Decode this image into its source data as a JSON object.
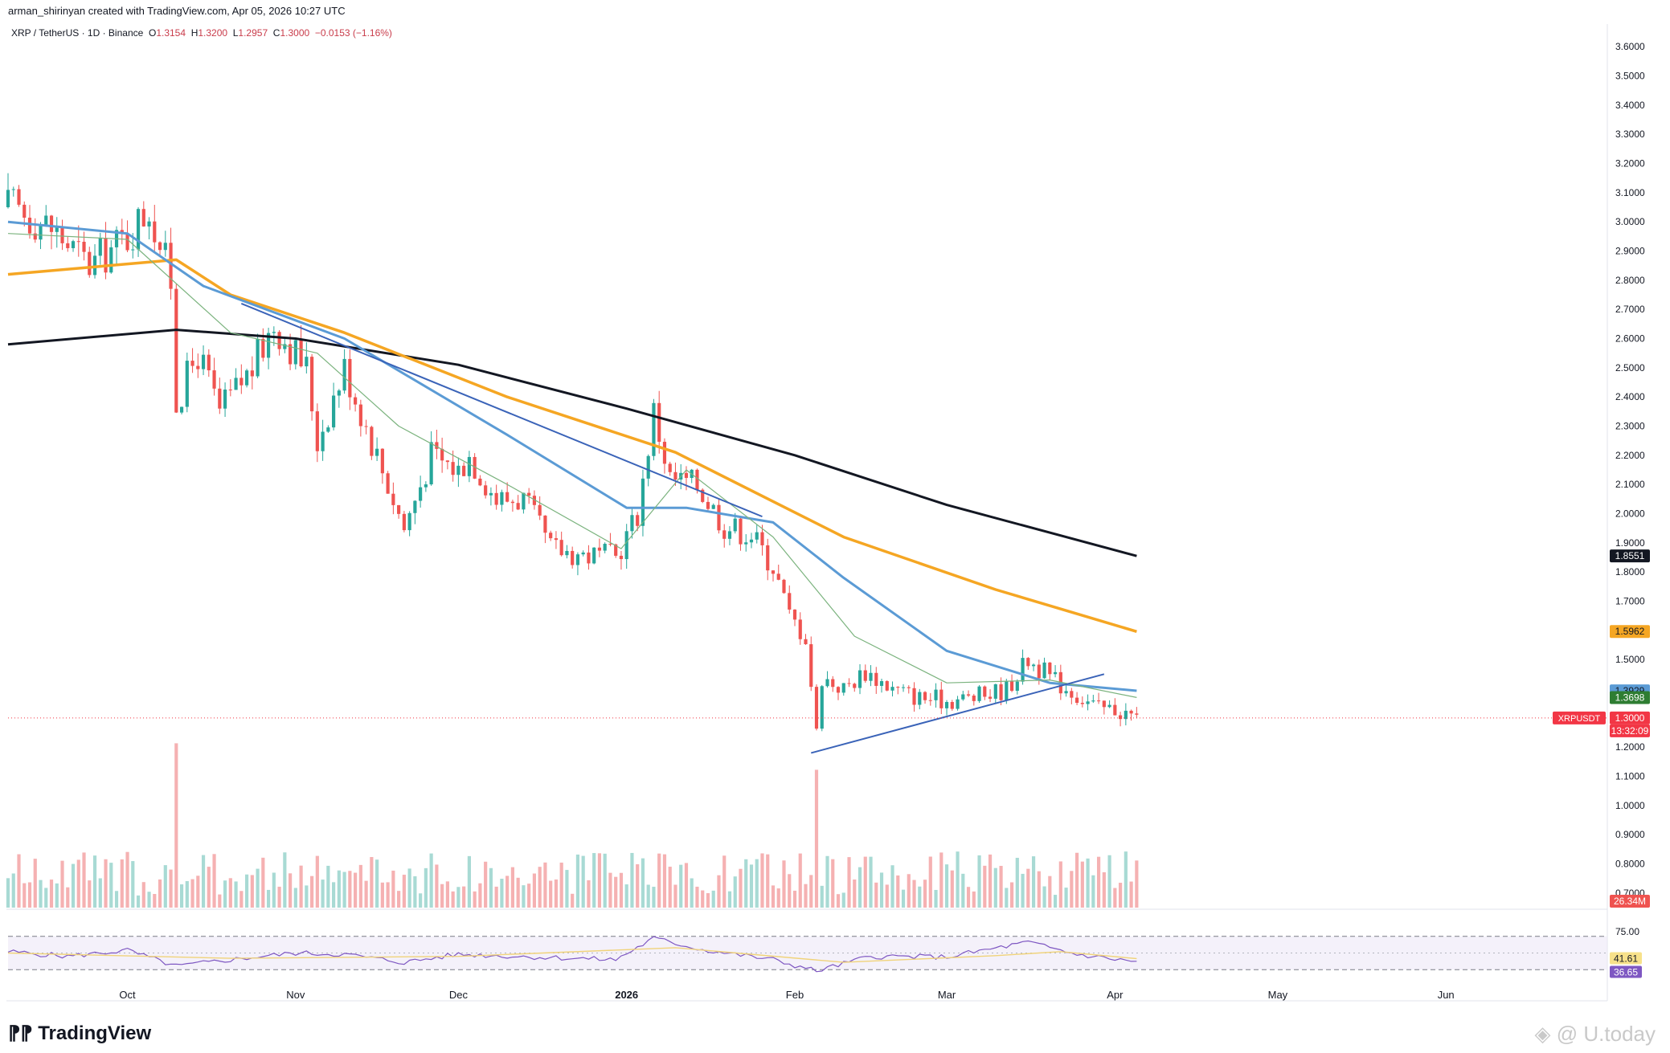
{
  "header": {
    "created_by": "arman_shirinyan created with TradingView.com, Apr 05, 2026 10:27 UTC"
  },
  "legend": {
    "symbol": "XRP / TetherUS · 1D · Binance",
    "o_label": "O",
    "o": "1.3154",
    "h_label": "H",
    "h": "1.3200",
    "l_label": "L",
    "l": "1.2957",
    "c_label": "C",
    "c": "1.3000",
    "change": "−0.0153 (−1.16%)"
  },
  "brand": "TradingView",
  "watermark": "U.today",
  "colors": {
    "up": "#26a69a",
    "down": "#ef5350",
    "ma200": "#131722",
    "ma100": "#f5a623",
    "ma50": "#5b9bd5",
    "ma20": "#7bb37e",
    "trend": "#2962ff",
    "rsi": "#7e57c2",
    "rsi_ma": "#f0d37a"
  },
  "chart_data": {
    "type": "candlestick",
    "symbol": "XRPUSDT",
    "ylim": [
      0.65,
      3.65
    ],
    "y_ticks": [
      "3.6000",
      "3.5000",
      "3.4000",
      "3.3000",
      "3.2000",
      "3.1000",
      "3.0000",
      "2.9000",
      "2.8000",
      "2.7000",
      "2.6000",
      "2.5000",
      "2.4000",
      "2.3000",
      "2.2000",
      "2.1000",
      "2.0000",
      "1.9000",
      "1.8000",
      "1.7000",
      "1.6000",
      "1.5000",
      "1.4000",
      "1.3000",
      "1.2000",
      "1.1000",
      "1.0000",
      "0.9000",
      "0.8000",
      "0.7000"
    ],
    "x_ticks": [
      {
        "label": "Oct",
        "date": "2025-10-01",
        "bold": false
      },
      {
        "label": "Nov",
        "date": "2025-11-01",
        "bold": false
      },
      {
        "label": "Dec",
        "date": "2025-12-01",
        "bold": false
      },
      {
        "label": "2026",
        "date": "2026-01-01",
        "bold": true
      },
      {
        "label": "Feb",
        "date": "2026-02-01",
        "bold": false
      },
      {
        "label": "Mar",
        "date": "2026-03-01",
        "bold": false
      },
      {
        "label": "Apr",
        "date": "2026-04-01",
        "bold": false
      },
      {
        "label": "May",
        "date": "2026-05-01",
        "bold": false
      },
      {
        "label": "Jun",
        "date": "2026-06-01",
        "bold": false
      }
    ],
    "price_path": [
      {
        "date": "2025-09-10",
        "value": 3.05
      },
      {
        "date": "2025-09-17",
        "value": 2.98
      },
      {
        "date": "2025-09-24",
        "value": 2.85
      },
      {
        "date": "2025-10-01",
        "value": 2.95
      },
      {
        "date": "2025-10-05",
        "value": 3.05
      },
      {
        "date": "2025-10-09",
        "value": 2.8
      },
      {
        "date": "2025-10-10",
        "value": 2.38
      },
      {
        "date": "2025-10-14",
        "value": 2.55
      },
      {
        "date": "2025-10-18",
        "value": 2.35
      },
      {
        "date": "2025-10-24",
        "value": 2.5
      },
      {
        "date": "2025-10-28",
        "value": 2.65
      },
      {
        "date": "2025-11-03",
        "value": 2.5
      },
      {
        "date": "2025-11-05",
        "value": 2.25
      },
      {
        "date": "2025-11-10",
        "value": 2.5
      },
      {
        "date": "2025-11-14",
        "value": 2.3
      },
      {
        "date": "2025-11-21",
        "value": 1.95
      },
      {
        "date": "2025-11-26",
        "value": 2.2
      },
      {
        "date": "2025-12-01",
        "value": 2.15
      },
      {
        "date": "2025-12-03",
        "value": 2.2
      },
      {
        "date": "2025-12-08",
        "value": 2.05
      },
      {
        "date": "2025-12-13",
        "value": 2.05
      },
      {
        "date": "2025-12-18",
        "value": 1.88
      },
      {
        "date": "2025-12-24",
        "value": 1.86
      },
      {
        "date": "2025-12-30",
        "value": 1.85
      },
      {
        "date": "2026-01-03",
        "value": 2.0
      },
      {
        "date": "2026-01-06",
        "value": 2.35
      },
      {
        "date": "2026-01-09",
        "value": 2.12
      },
      {
        "date": "2026-01-14",
        "value": 2.1
      },
      {
        "date": "2026-01-19",
        "value": 1.96
      },
      {
        "date": "2026-01-24",
        "value": 1.93
      },
      {
        "date": "2026-01-28",
        "value": 1.82
      },
      {
        "date": "2026-01-31",
        "value": 1.65
      },
      {
        "date": "2026-02-03",
        "value": 1.58
      },
      {
        "date": "2026-02-05",
        "value": 1.25
      },
      {
        "date": "2026-02-06",
        "value": 1.44
      },
      {
        "date": "2026-02-10",
        "value": 1.4
      },
      {
        "date": "2026-02-14",
        "value": 1.46
      },
      {
        "date": "2026-02-19",
        "value": 1.4
      },
      {
        "date": "2026-02-24",
        "value": 1.37
      },
      {
        "date": "2026-03-01",
        "value": 1.36
      },
      {
        "date": "2026-03-06",
        "value": 1.37
      },
      {
        "date": "2026-03-12",
        "value": 1.4
      },
      {
        "date": "2026-03-16",
        "value": 1.5
      },
      {
        "date": "2026-03-20",
        "value": 1.44
      },
      {
        "date": "2026-03-25",
        "value": 1.38
      },
      {
        "date": "2026-03-29",
        "value": 1.33
      },
      {
        "date": "2026-04-01",
        "value": 1.33
      },
      {
        "date": "2026-04-05",
        "value": 1.3
      }
    ],
    "ma200": [
      {
        "date": "2025-09-09",
        "value": 2.58
      },
      {
        "date": "2025-10-10",
        "value": 2.63
      },
      {
        "date": "2025-11-01",
        "value": 2.6
      },
      {
        "date": "2025-12-01",
        "value": 2.51
      },
      {
        "date": "2026-01-01",
        "value": 2.36
      },
      {
        "date": "2026-02-01",
        "value": 2.2
      },
      {
        "date": "2026-03-01",
        "value": 2.03
      },
      {
        "date": "2026-04-05",
        "value": 1.855
      }
    ],
    "ma100": [
      {
        "date": "2025-09-09",
        "value": 2.82
      },
      {
        "date": "2025-10-10",
        "value": 2.87
      },
      {
        "date": "2025-10-20",
        "value": 2.75
      },
      {
        "date": "2025-11-10",
        "value": 2.62
      },
      {
        "date": "2025-12-10",
        "value": 2.4
      },
      {
        "date": "2026-01-10",
        "value": 2.21
      },
      {
        "date": "2026-02-10",
        "value": 1.92
      },
      {
        "date": "2026-03-10",
        "value": 1.74
      },
      {
        "date": "2026-04-05",
        "value": 1.596
      }
    ],
    "ma50": [
      {
        "date": "2025-09-09",
        "value": 3.0
      },
      {
        "date": "2025-10-01",
        "value": 2.96
      },
      {
        "date": "2025-10-15",
        "value": 2.78
      },
      {
        "date": "2025-11-10",
        "value": 2.6
      },
      {
        "date": "2025-12-10",
        "value": 2.27
      },
      {
        "date": "2026-01-01",
        "value": 2.02
      },
      {
        "date": "2026-01-12",
        "value": 2.02
      },
      {
        "date": "2026-01-28",
        "value": 1.97
      },
      {
        "date": "2026-02-10",
        "value": 1.78
      },
      {
        "date": "2026-03-01",
        "value": 1.53
      },
      {
        "date": "2026-03-20",
        "value": 1.42
      },
      {
        "date": "2026-04-05",
        "value": 1.393
      }
    ],
    "ma20": [
      {
        "date": "2025-09-09",
        "value": 2.96
      },
      {
        "date": "2025-10-01",
        "value": 2.94
      },
      {
        "date": "2025-10-20",
        "value": 2.62
      },
      {
        "date": "2025-11-05",
        "value": 2.55
      },
      {
        "date": "2025-11-20",
        "value": 2.3
      },
      {
        "date": "2025-12-10",
        "value": 2.1
      },
      {
        "date": "2025-12-31",
        "value": 1.88
      },
      {
        "date": "2026-01-12",
        "value": 2.15
      },
      {
        "date": "2026-01-28",
        "value": 1.92
      },
      {
        "date": "2026-02-12",
        "value": 1.58
      },
      {
        "date": "2026-03-01",
        "value": 1.42
      },
      {
        "date": "2026-03-20",
        "value": 1.43
      },
      {
        "date": "2026-04-05",
        "value": 1.37
      }
    ],
    "trendlines": [
      {
        "from": {
          "date": "2025-10-22",
          "value": 2.72
        },
        "to": {
          "date": "2026-01-26",
          "value": 1.99
        }
      },
      {
        "from": {
          "date": "2026-02-04",
          "value": 1.18
        },
        "to": {
          "date": "2026-03-30",
          "value": 1.45
        }
      }
    ],
    "price_labels": [
      {
        "text": "1.8551",
        "value": 1.8551,
        "bg": "#131722",
        "color": "#ffffff"
      },
      {
        "text": "1.5962",
        "value": 1.5962,
        "bg": "#f5a623",
        "color": "#131722"
      },
      {
        "text": "1.3929",
        "value": 1.3929,
        "bg": "#5b9bd5",
        "color": "#131722"
      },
      {
        "text": "1.3698",
        "value": 1.3698,
        "bg": "#2e7d32",
        "color": "#ffffff"
      },
      {
        "text": "1.3000",
        "value": 1.3,
        "bg": "#f23645",
        "color": "#ffffff"
      }
    ],
    "current": {
      "symbol_label": "XRPUSDT",
      "price": "1.3000",
      "countdown": "13:32:09",
      "value": 1.3
    },
    "volume": {
      "last_label": "26.34M",
      "spikes": [
        {
          "date": "2025-10-10",
          "height": 0.93
        },
        {
          "date": "2026-02-05",
          "height": 0.78
        }
      ]
    },
    "rsi": {
      "upper": "75.00",
      "lower": "25.00",
      "rsi_ma_value": "41.61",
      "rsi_value": "36.65",
      "series": [
        {
          "date": "2025-09-09",
          "value": 52
        },
        {
          "date": "2025-09-20",
          "value": 45
        },
        {
          "date": "2025-10-01",
          "value": 54
        },
        {
          "date": "2025-10-10",
          "value": 30
        },
        {
          "date": "2025-10-20",
          "value": 40
        },
        {
          "date": "2025-11-01",
          "value": 50
        },
        {
          "date": "2025-11-10",
          "value": 48
        },
        {
          "date": "2025-11-21",
          "value": 36
        },
        {
          "date": "2025-12-01",
          "value": 48
        },
        {
          "date": "2025-12-15",
          "value": 44
        },
        {
          "date": "2025-12-30",
          "value": 40
        },
        {
          "date": "2026-01-06",
          "value": 72
        },
        {
          "date": "2026-01-15",
          "value": 55
        },
        {
          "date": "2026-01-28",
          "value": 40
        },
        {
          "date": "2026-02-05",
          "value": 23
        },
        {
          "date": "2026-02-15",
          "value": 45
        },
        {
          "date": "2026-03-01",
          "value": 44
        },
        {
          "date": "2026-03-16",
          "value": 66
        },
        {
          "date": "2026-03-25",
          "value": 48
        },
        {
          "date": "2026-04-05",
          "value": 36.65
        }
      ],
      "ma_series": [
        {
          "date": "2025-09-09",
          "value": 50
        },
        {
          "date": "2025-10-20",
          "value": 42
        },
        {
          "date": "2025-12-01",
          "value": 45
        },
        {
          "date": "2026-01-10",
          "value": 58
        },
        {
          "date": "2026-02-10",
          "value": 36
        },
        {
          "date": "2026-03-10",
          "value": 46
        },
        {
          "date": "2026-03-22",
          "value": 52
        },
        {
          "date": "2026-04-05",
          "value": 41.61
        }
      ]
    }
  }
}
